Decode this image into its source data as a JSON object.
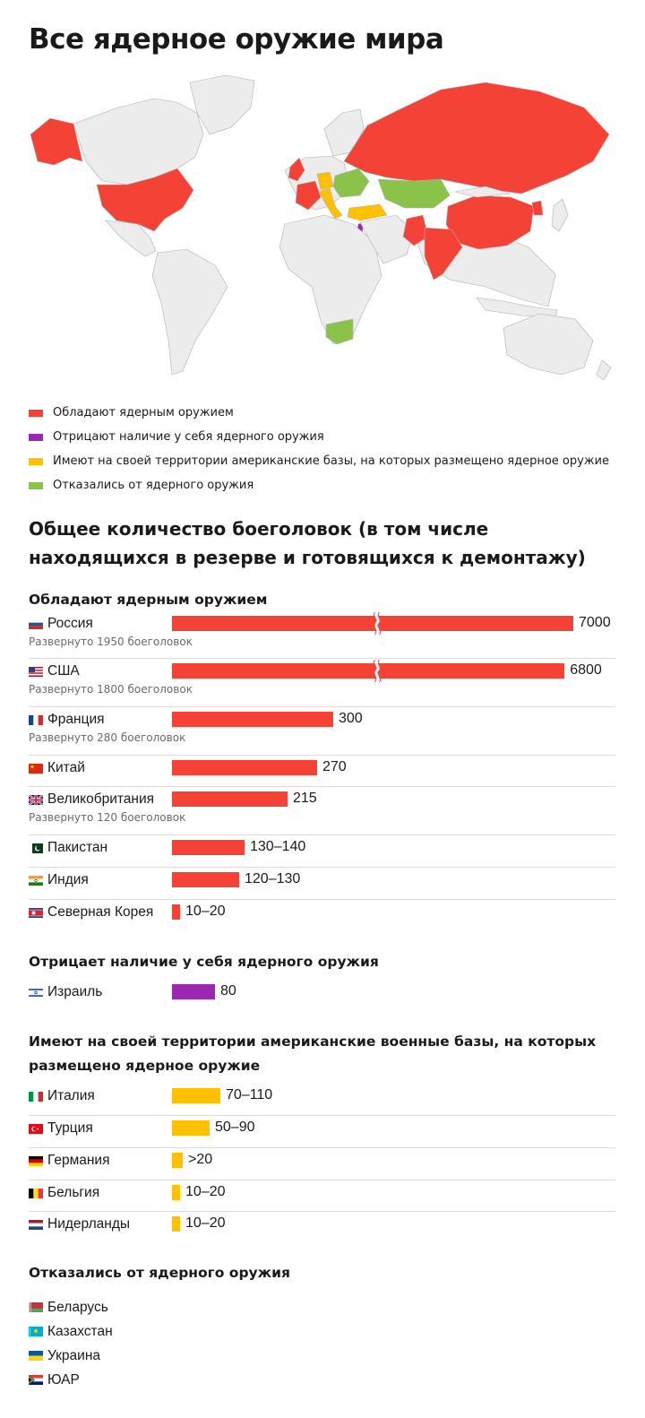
{
  "title": "Все ядерное оружие мира",
  "colors": {
    "possess": "#f44336",
    "deny": "#9c27b0",
    "bases": "#ffc000",
    "renounced": "#8bc34a",
    "land": "#ececec",
    "border": "#b0b0b0"
  },
  "legend": [
    {
      "label": "Обладают ядерным оружием",
      "color": "#f44336"
    },
    {
      "label": "Отрицают наличие у себя ядерного оружия",
      "color": "#9c27b0"
    },
    {
      "label": "Имеют на своей территории американские базы, на которых размещено ядерное оружие",
      "color": "#ffc000"
    },
    {
      "label": "Отказались от ядерного оружия",
      "color": "#8bc34a"
    }
  ],
  "subtitle": "Общее количество боеголовок (в том числе находящихся в резерве и готовящихся к демонтажу)",
  "chart_data": {
    "type": "bar",
    "title": "Общее количество боеголовок (в том числе находящихся в резерве и готовящихся к демонтажу)",
    "groups": [
      {
        "heading": "Обладают ядерным оружием",
        "color": "#f44336",
        "rows": [
          {
            "country": "Россия",
            "flag": "ru",
            "value": 7000,
            "label": "7000",
            "deployed": "Развернуто 1950 боеголовок",
            "broken": true
          },
          {
            "country": "США",
            "flag": "us",
            "value": 6800,
            "label": "6800",
            "deployed": "Развернуто 1800 боеголовок",
            "broken": true
          },
          {
            "country": "Франция",
            "flag": "fr",
            "value": 300,
            "label": "300",
            "deployed": "Развернуто 280 боеголовок"
          },
          {
            "country": "Китай",
            "flag": "cn",
            "value": 270,
            "label": "270"
          },
          {
            "country": "Великобритания",
            "flag": "gb",
            "value": 215,
            "label": "215",
            "deployed": "Развернуто 120 боеголовок"
          },
          {
            "country": "Пакистан",
            "flag": "pk",
            "value": 135,
            "label": "130–140"
          },
          {
            "country": "Индия",
            "flag": "in",
            "value": 125,
            "label": "120–130"
          },
          {
            "country": "Северная Корея",
            "flag": "kp",
            "value": 15,
            "label": "10–20"
          }
        ]
      },
      {
        "heading": "Отрицает наличие у себя ядерного оружия",
        "color": "#9c27b0",
        "rows": [
          {
            "country": "Израиль",
            "flag": "il",
            "value": 80,
            "label": "80"
          }
        ]
      },
      {
        "heading": "Имеют на своей территории американские военные базы, на которых размещено ядерное оружие",
        "color": "#ffc000",
        "rows": [
          {
            "country": "Италия",
            "flag": "it",
            "value": 90,
            "label": "70–110"
          },
          {
            "country": "Турция",
            "flag": "tr",
            "value": 70,
            "label": "50–90"
          },
          {
            "country": "Германия",
            "flag": "de",
            "value": 20,
            "label": ">20"
          },
          {
            "country": "Бельгия",
            "flag": "be",
            "value": 15,
            "label": "10–20"
          },
          {
            "country": "Нидерланды",
            "flag": "nl",
            "value": 15,
            "label": "10–20"
          }
        ]
      }
    ]
  },
  "renounced": {
    "heading": "Отказались от ядерного оружия",
    "countries": [
      {
        "name": "Беларусь",
        "flag": "by"
      },
      {
        "name": "Казахстан",
        "flag": "kz"
      },
      {
        "name": "Украина",
        "flag": "ua"
      },
      {
        "name": "ЮАР",
        "flag": "za"
      }
    ]
  }
}
